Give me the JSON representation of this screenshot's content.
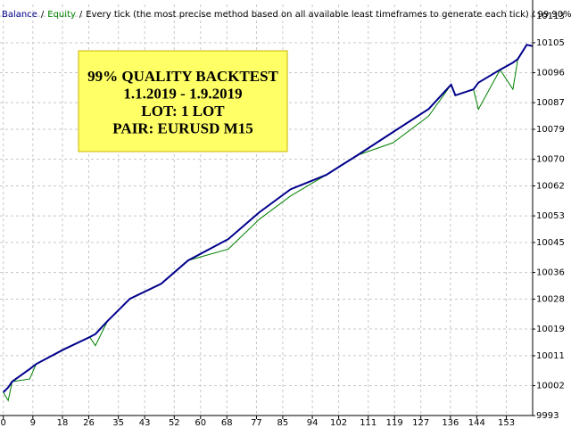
{
  "chart_data": {
    "type": "line",
    "separator": "/",
    "subtitle": "Every tick (the most precise method based on all available least timeframes to generate each tick) / 99.90%",
    "annotations": [
      "99% QUALITY BACKTEST",
      "1.1.2019 - 1.9.2019",
      "LOT: 1 LOT",
      "PAIR: EURUSD M15"
    ],
    "x": [
      0,
      1.5,
      2.7,
      8,
      10,
      18.2,
      26.3,
      28,
      31.7,
      38.5,
      48,
      56.2,
      68.4,
      77.9,
      87.4,
      98.2,
      107.7,
      118.6,
      129.4,
      136.2,
      137.5,
      143,
      144.5,
      151.1,
      155,
      156.5,
      159.2,
      161
    ],
    "series": [
      {
        "name": "Balance",
        "color": "#00008b",
        "values": [
          10000,
          10001.5,
          10003.2,
          10007,
          10008.5,
          10012.8,
          10016.6,
          10017.5,
          10021.4,
          10028.1,
          10032.6,
          10039.6,
          10046,
          10054.1,
          10061,
          10065.3,
          10071.2,
          10078.2,
          10085.1,
          10092.4,
          10089.2,
          10091,
          10093,
          10096.9,
          10099,
          10100.1,
          10104.4,
          10104
        ]
      },
      {
        "name": "Equity",
        "color": "#008000",
        "values": [
          10000,
          9997.5,
          10003.2,
          10004,
          10008.5,
          10012.8,
          10016.6,
          10014,
          10021.4,
          10028.1,
          10032.6,
          10039.6,
          10043,
          10052,
          10059,
          10065.3,
          10071.2,
          10075,
          10083,
          10092.4,
          10089.2,
          10091,
          10085,
          10096.9,
          10091,
          10100.1,
          10104.4,
          10104
        ]
      }
    ],
    "xlim": [
      -1,
      161
    ],
    "ylim": [
      9992.5,
      10116.5
    ],
    "xticks": [
      0,
      9,
      18,
      26,
      35,
      43,
      52,
      60,
      68,
      77,
      85,
      94,
      102,
      111,
      119,
      127,
      136,
      144,
      153
    ],
    "yticks": [
      10113,
      10105,
      10096,
      10087,
      10079,
      10070,
      10062,
      10053,
      10045,
      10036,
      10028,
      10019,
      10011,
      10002,
      9993
    ],
    "grid": true
  }
}
